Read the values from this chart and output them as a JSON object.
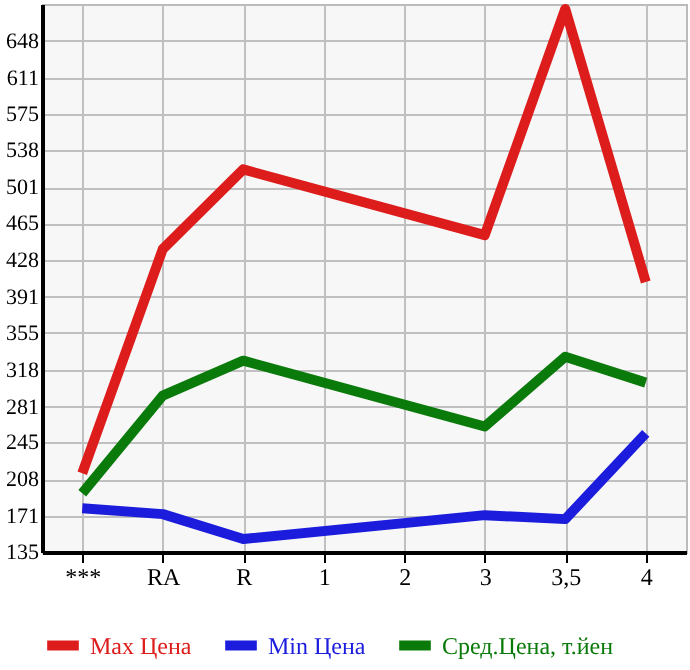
{
  "chart_data": {
    "type": "line",
    "categories": [
      "***",
      "RA",
      "R",
      "1",
      "2",
      "3",
      "3,5",
      "4"
    ],
    "series": [
      {
        "name": "Max Цена",
        "color": "#dd1c1c",
        "values": [
          214,
          439,
          519,
          null,
          null,
          453,
          680,
          406
        ]
      },
      {
        "name": "Min Цена",
        "color": "#1c1cdd",
        "values": [
          179,
          173,
          148,
          null,
          null,
          172,
          168,
          254
        ]
      },
      {
        "name": "Сред.Цена, т.йен",
        "color": "#0a7a0a",
        "values": [
          194,
          292,
          327,
          null,
          null,
          261,
          331,
          305
        ]
      }
    ],
    "ylim": [
      135,
      685
    ],
    "yticks": [
      135,
      171,
      208,
      245,
      281,
      318,
      355,
      391,
      428,
      465,
      501,
      538,
      575,
      611,
      648
    ],
    "grid": true,
    "legend": "bottom",
    "marker": "none",
    "line_style": "solid"
  }
}
